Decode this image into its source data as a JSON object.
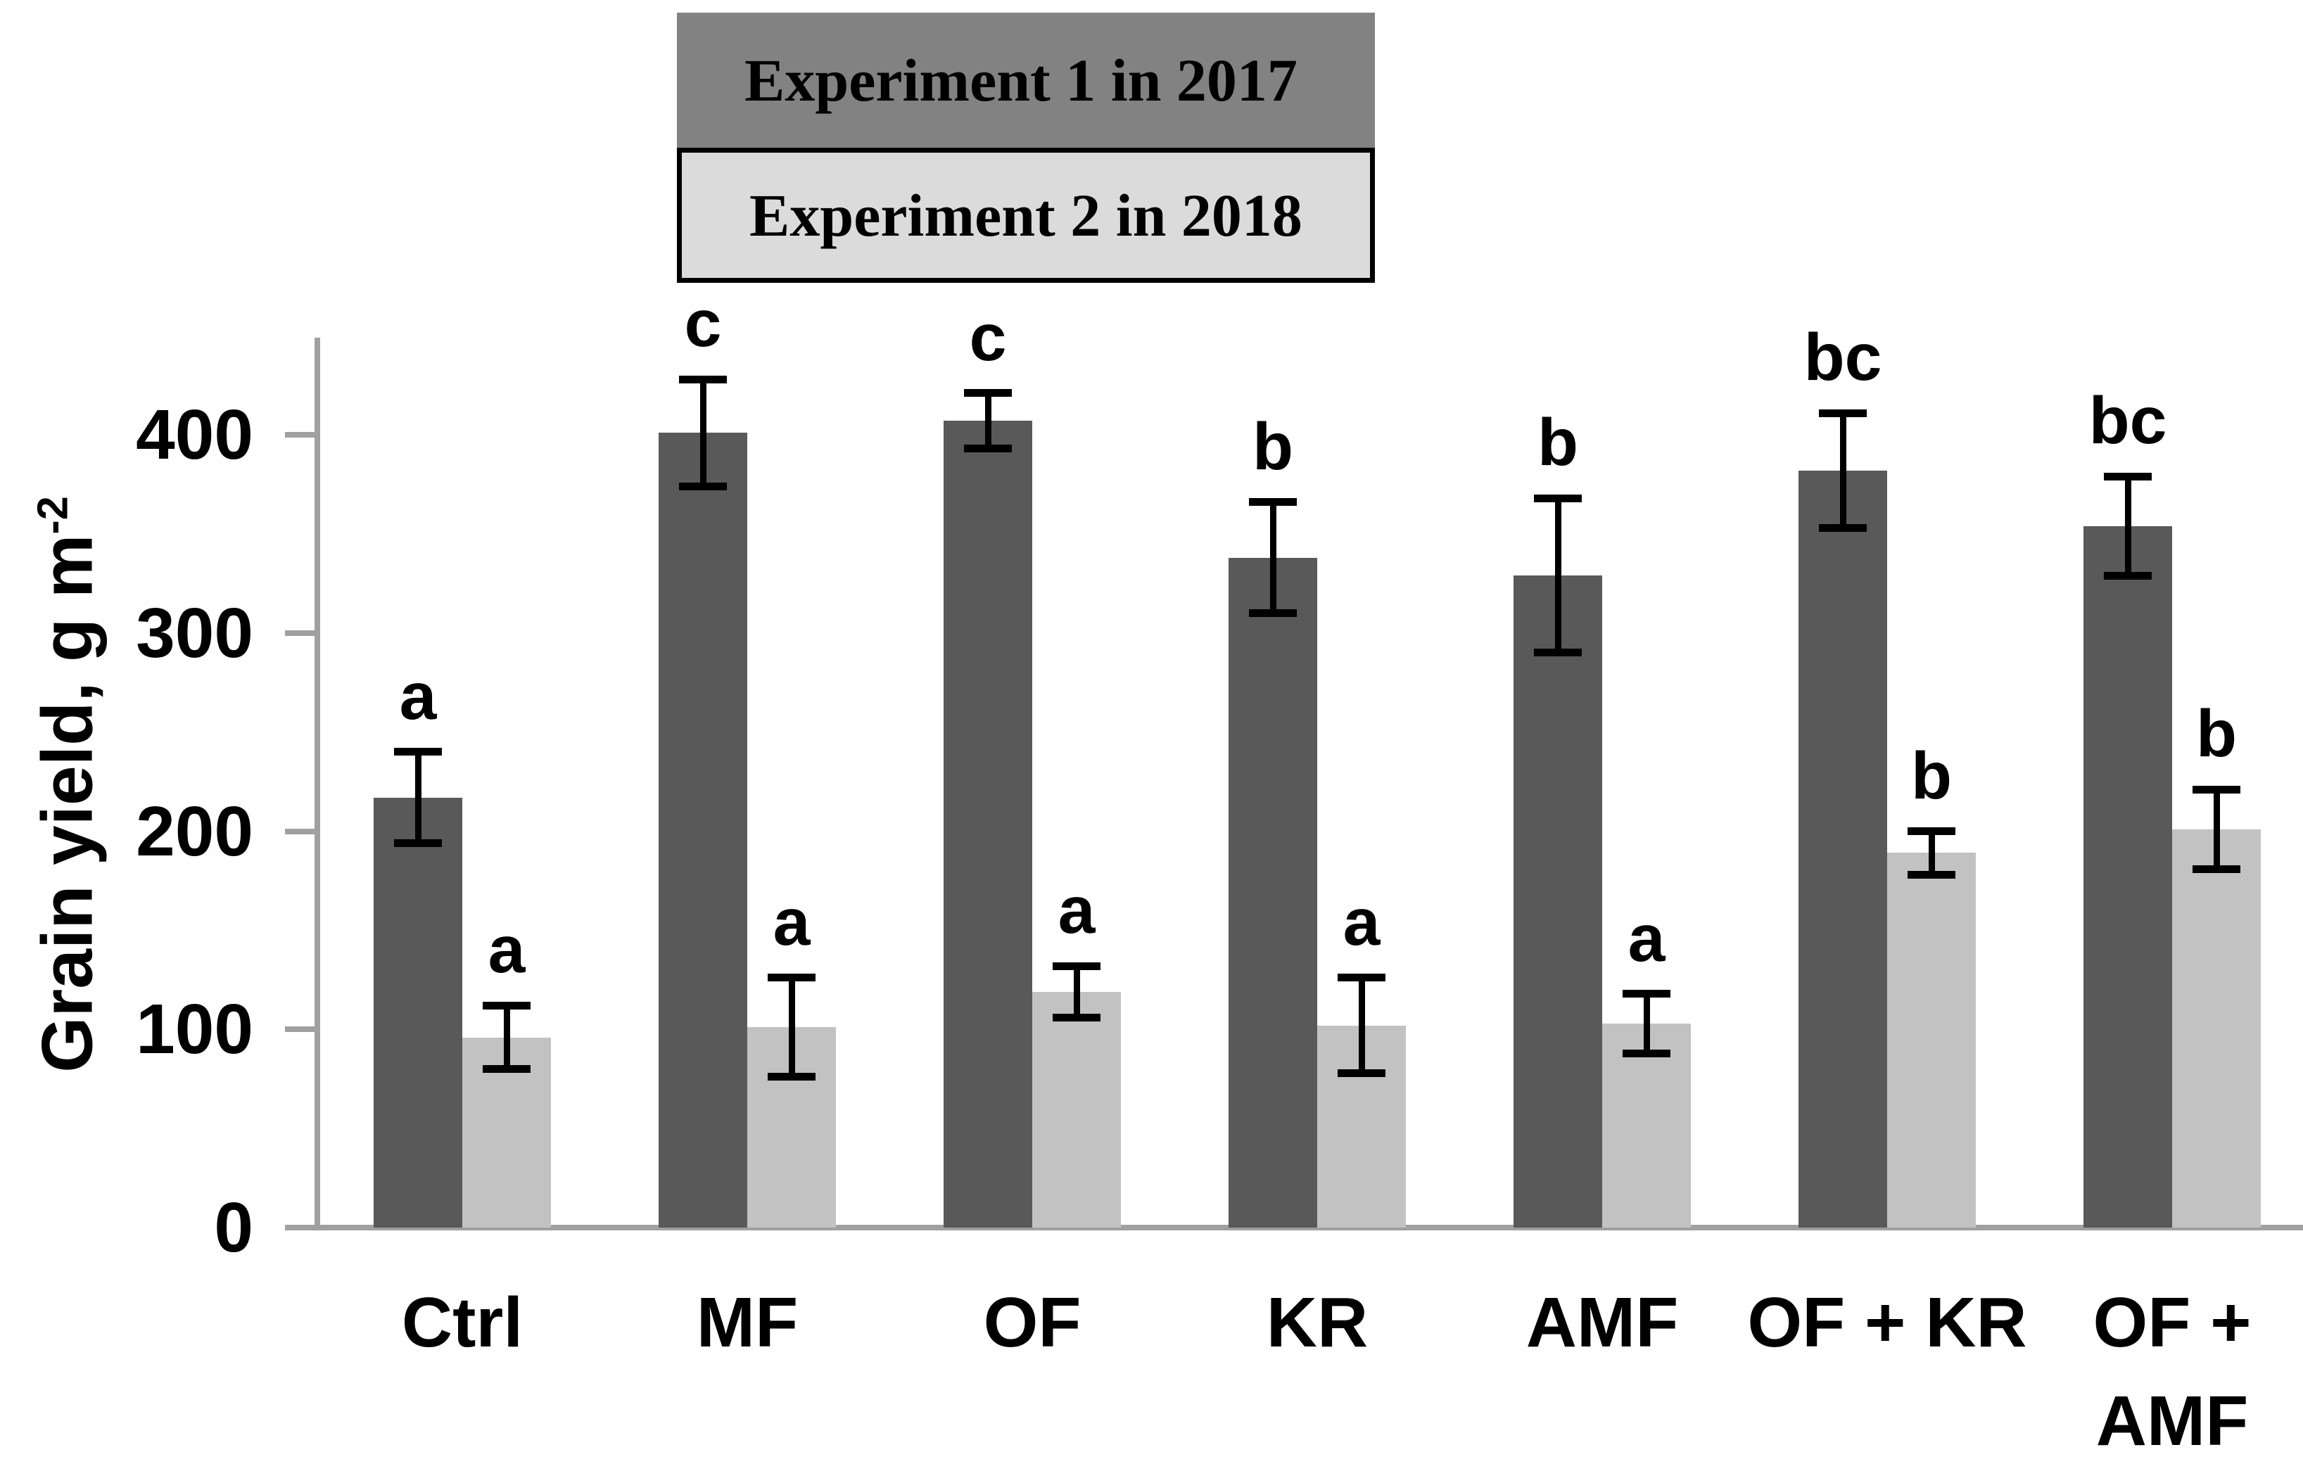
{
  "legend": {
    "items": [
      {
        "label": "Experiment 1 in 2017",
        "fill": "#828282",
        "border": "none"
      },
      {
        "label": "Experiment 2 in 2018",
        "fill": "#DBDBDB",
        "border": "#000000"
      }
    ]
  },
  "y_axis": {
    "title_main": "Grain yield, g m",
    "title_superscript": "-2"
  },
  "chart_data": {
    "type": "bar",
    "title": "",
    "xlabel": "",
    "ylabel": "Grain yield, g m^-2",
    "ylim": [
      0,
      440
    ],
    "yticks": [
      0,
      100,
      200,
      300,
      400
    ],
    "grid": false,
    "legend_position": "top-center",
    "categories": [
      "Ctrl",
      "MF",
      "OF",
      "KR",
      "AMF",
      "OF + KR",
      "OF +\nAMF"
    ],
    "series": [
      {
        "name": "Experiment 1 in 2017",
        "color": "#595959",
        "values": [
          217,
          401,
          407,
          338,
          329,
          382,
          354
        ],
        "errors": [
          23,
          27,
          14,
          28,
          39,
          29,
          25
        ],
        "sig_letters": [
          "a",
          "c",
          "c",
          "b",
          "b",
          "bc",
          "bc"
        ]
      },
      {
        "name": "Experiment 2 in 2018",
        "color": "#C2C2C2",
        "values": [
          96,
          101,
          119,
          102,
          103,
          189,
          201
        ],
        "errors": [
          16,
          25,
          13,
          24,
          15,
          11,
          20
        ],
        "sig_letters": [
          "a",
          "a",
          "a",
          "a",
          "a",
          "b",
          "b"
        ]
      }
    ],
    "error_bar_color": "#000000",
    "axis_color": "#A0A0A0",
    "background_color": "#FFFFFF"
  }
}
